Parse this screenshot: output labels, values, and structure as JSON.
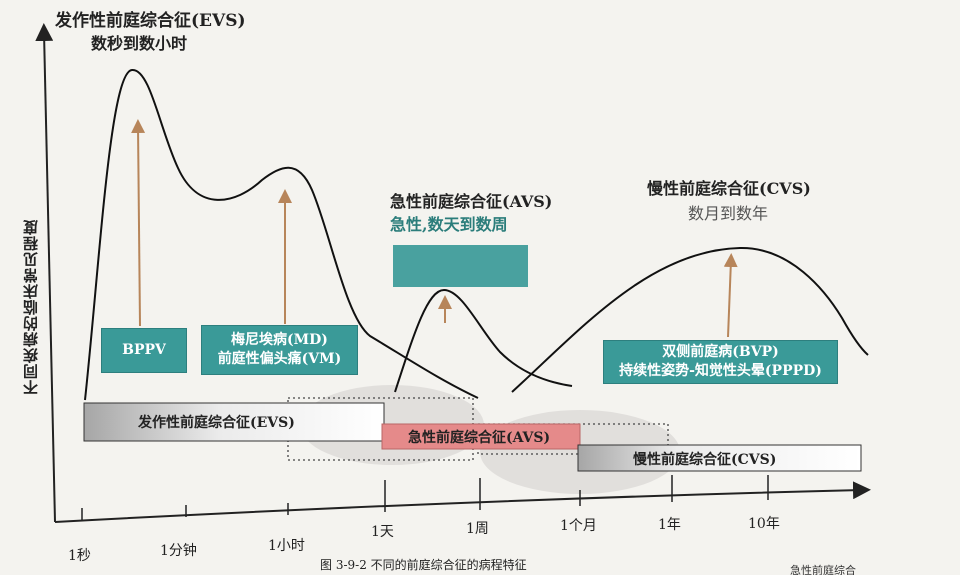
{
  "evs_header": {
    "title": "发作性前庭综合征(EVS)",
    "subtitle": "数秒到数小时"
  },
  "y_axis_label": "不同疾病的临床常见程度",
  "peak_labels": {
    "bppv": "BPPV",
    "md_line1": "梅尼埃病(MD)",
    "md_line2": "前庭性偏头痛(VM)",
    "bvp_line1": "双侧前庭病(BVP)",
    "bvp_line2": "持续性姿势-知觉性头晕(PPPD)"
  },
  "avs_header": {
    "title": "急性前庭综合征(AVS)",
    "subtitle": "急性,数天到数周"
  },
  "cvs_header": {
    "title": "慢性前庭综合征(CVS)",
    "subtitle": "数月到数年"
  },
  "bars": {
    "evs": "发作性前庭综合征(EVS)",
    "avs": "急性前庭综合征(AVS)",
    "cvs": "慢性前庭综合征(CVS)"
  },
  "x_ticks": [
    "1秒",
    "1分钟",
    "1小时",
    "1天",
    "1周",
    "1个月",
    "1年",
    "10年"
  ],
  "caption": "图 3-9-2   不同的前庭综合征的病程特征",
  "corner_fragment": "急性前庭综合",
  "colors": {
    "teal": "#3a9a98",
    "teal_text": "#2b7d7b",
    "avs_bar": "#e58a8a",
    "evs_bar_gradient_start": "#a6a6a6",
    "arrow": "#b7855a",
    "shadow": "#d9d6d4"
  }
}
